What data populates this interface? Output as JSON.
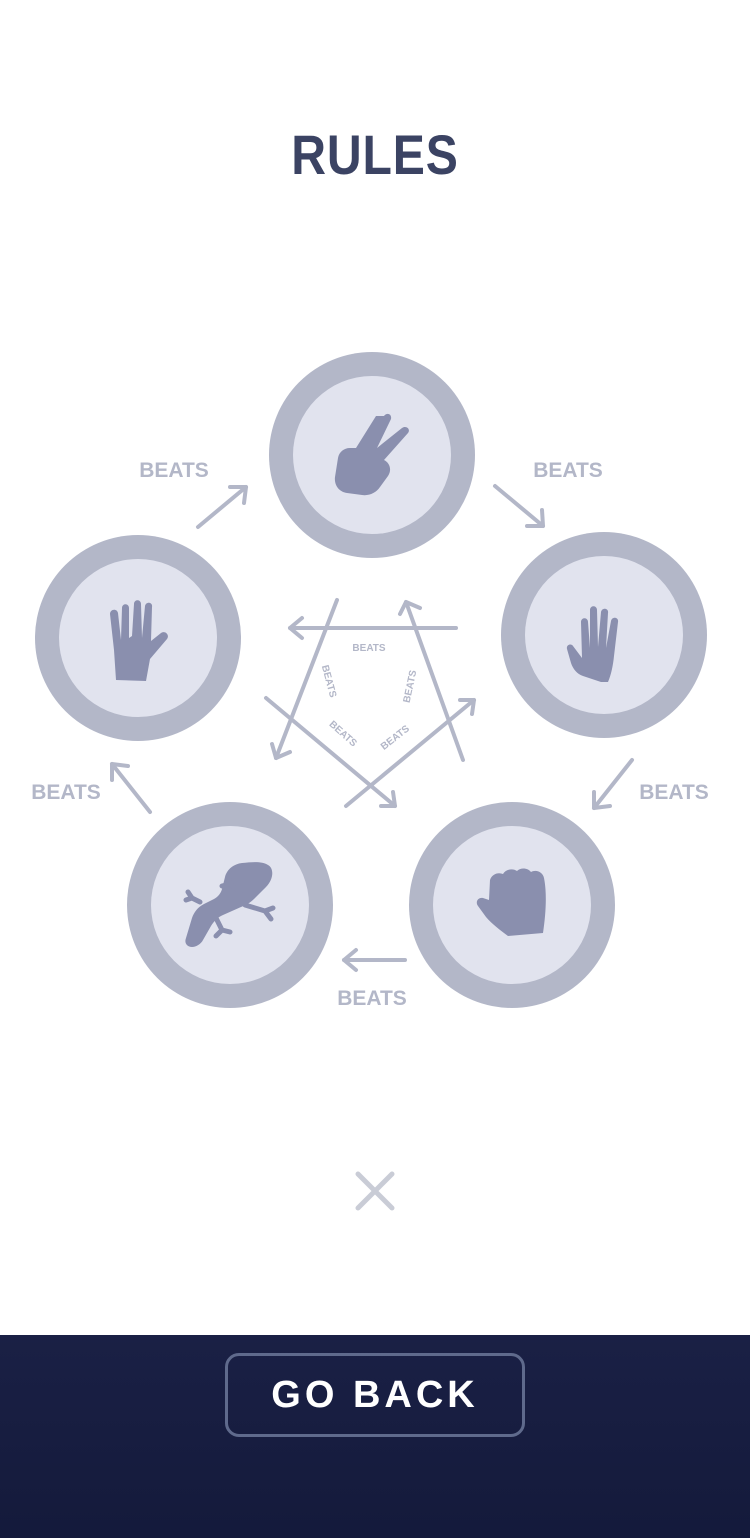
{
  "title": "RULES",
  "beats_label": "BEATS",
  "moves": [
    {
      "name": "scissors",
      "icon": "scissors-hand-icon"
    },
    {
      "name": "paper",
      "icon": "paper-hand-icon"
    },
    {
      "name": "rock",
      "icon": "rock-fist-icon"
    },
    {
      "name": "lizard",
      "icon": "lizard-icon"
    },
    {
      "name": "spock",
      "icon": "spock-hand-icon"
    }
  ],
  "close_icon": "close-icon",
  "footer": {
    "go_back_label": "GO BACK"
  },
  "colors": {
    "title": "#3b4363",
    "circle_outer": "#b3b7c8",
    "circle_inner": "#e1e3ee",
    "icon": "#8a8fae",
    "arrow": "#b3b7c8",
    "footer_bg": "#141a3b"
  }
}
